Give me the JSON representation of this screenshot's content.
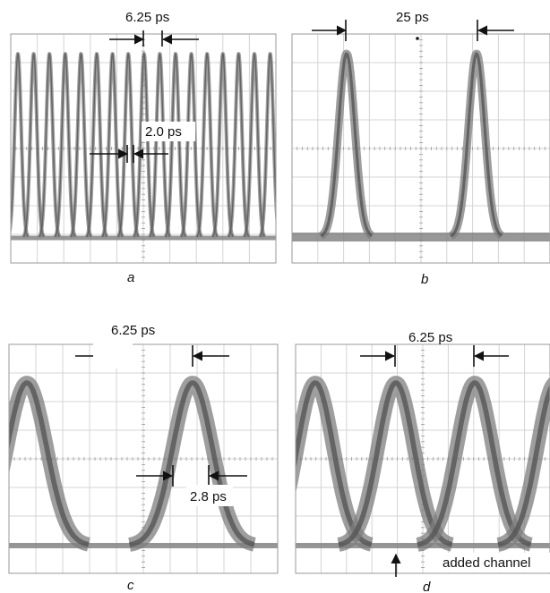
{
  "panels": [
    {
      "id": "a",
      "caption": "a",
      "annotations": {
        "top": "6.25 ps",
        "mid": "2.0 ps"
      }
    },
    {
      "id": "b",
      "caption": "b",
      "annotations": {
        "top": "25 ps"
      }
    },
    {
      "id": "c",
      "caption": "c",
      "annotations": {
        "top": "6.25 ps",
        "mid": "2.8 ps"
      }
    },
    {
      "id": "d",
      "caption": "d",
      "annotations": {
        "top": "6.25 ps",
        "bottom": "added channel"
      }
    }
  ],
  "colors": {
    "trace": "#7d7d7d",
    "trace_dark": "#555555",
    "grid": "#d4d4d4",
    "frame": "#9a9a9a",
    "arrow": "#111111"
  }
}
